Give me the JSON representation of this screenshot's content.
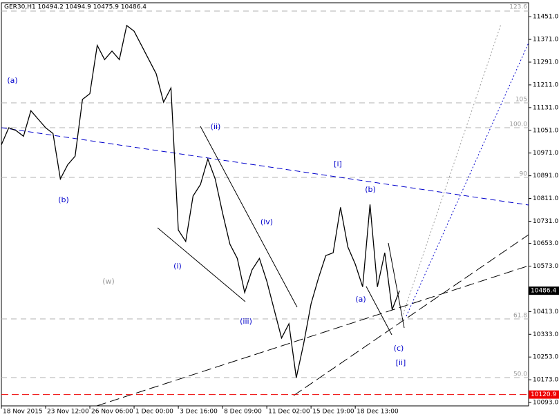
{
  "chart_data": {
    "type": "line",
    "title": "GER30,H1  10494.2 10494.9 10475.9 10486.4",
    "color": "#000000",
    "categories": [
      "18 Nov 2015",
      null,
      null,
      null,
      null,
      null,
      "23 Nov 12:00",
      null,
      null,
      null,
      null,
      null,
      "26 Nov 06:00",
      null,
      null,
      null,
      null,
      null,
      "1 Dec 00:00",
      null,
      null,
      null,
      null,
      null,
      "3 Dec 16:00",
      null,
      null,
      null,
      null,
      null,
      "8 Dec 09:00",
      null,
      null,
      null,
      null,
      null,
      "11 Dec 02:00",
      null,
      null,
      null,
      null,
      null,
      "15 Dec 19:00",
      null,
      null,
      null,
      null,
      null,
      "18 Dec 13:00",
      null,
      null,
      null,
      null,
      null,
      null
    ],
    "values": [
      11000,
      11060,
      11050,
      11030,
      11120,
      11090,
      11060,
      11040,
      10880,
      10930,
      10960,
      11160,
      11180,
      11350,
      11300,
      11330,
      11300,
      11420,
      11400,
      11350,
      11300,
      11250,
      11150,
      11200,
      10700,
      10660,
      10820,
      10860,
      10950,
      10880,
      10760,
      10650,
      10600,
      10480,
      10560,
      10600,
      10520,
      10420,
      10320,
      10370,
      10180,
      10300,
      10440,
      10530,
      10610,
      10620,
      10780,
      10640,
      10580,
      10500,
      10790,
      10500,
      10620,
      10420,
      10486.4
    ],
    "ylim": [
      10081,
      11500
    ],
    "yticks": [
      {
        "value": 11451,
        "label": "11451.0"
      },
      {
        "value": 11371,
        "label": "11371.0"
      },
      {
        "value": 11291,
        "label": "11291.0"
      },
      {
        "value": 11211,
        "label": "11211.0"
      },
      {
        "value": 11131,
        "label": "11131.0"
      },
      {
        "value": 11051,
        "label": "11051.0"
      },
      {
        "value": 10971,
        "label": "10971.0"
      },
      {
        "value": 10891,
        "label": "10891.0"
      },
      {
        "value": 10811,
        "label": "10811.0"
      },
      {
        "value": 10731,
        "label": "10731.0"
      },
      {
        "value": 10653,
        "label": "10653.0"
      },
      {
        "value": 10573,
        "label": "10573.0"
      },
      {
        "value": 10413,
        "label": "10413.0"
      },
      {
        "value": 10333,
        "label": "10333.0"
      },
      {
        "value": 10253,
        "label": "10253.0"
      },
      {
        "value": 10173,
        "label": "10173.0"
      },
      {
        "value": 10093,
        "label": "10093.0"
      }
    ],
    "current_price": 10486.4,
    "low_line": 10120.9,
    "fib_labels": [
      "123.6",
      "105",
      "100.0",
      "90",
      "61.8",
      "50.0"
    ],
    "wave_labels": [
      "(a)",
      "(b)",
      "(w)",
      "(i)",
      "(ii)",
      "(iii)",
      "(iv)",
      "[i]",
      "(b)",
      "(a)",
      "(c)",
      "[ii]"
    ]
  }
}
